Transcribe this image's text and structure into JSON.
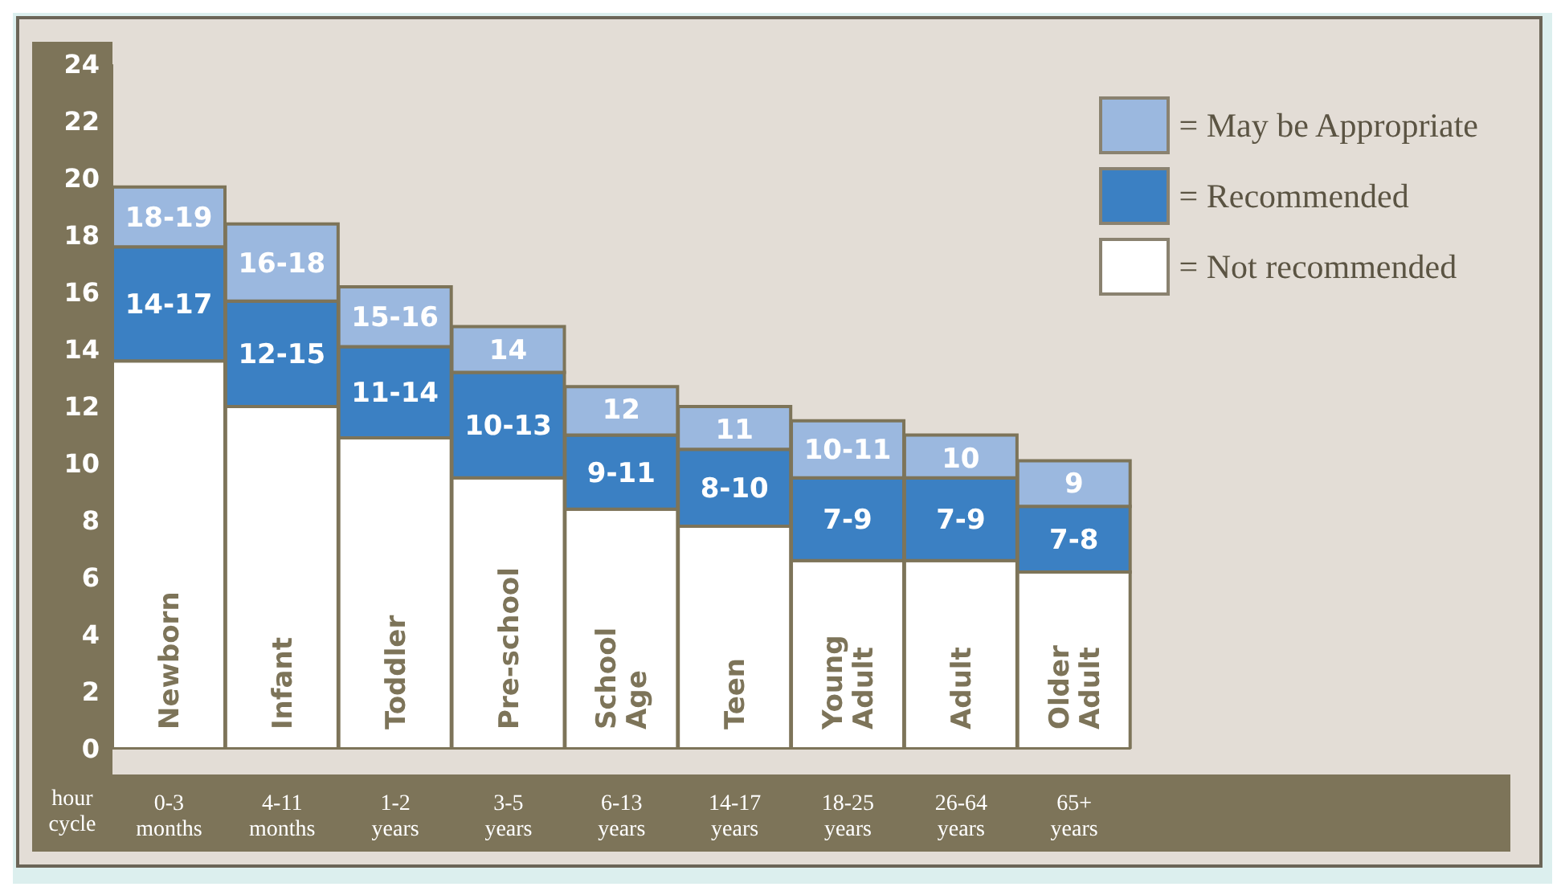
{
  "chart_data": {
    "type": "bar",
    "stacked": true,
    "ylabel": "hour cycle",
    "categories": [
      "0-3 months",
      "4-11 months",
      "1-2 years",
      "3-5 years",
      "6-13 years",
      "14-17 years",
      "18-25 years",
      "26-64 years",
      "65+ years"
    ],
    "series": [
      {
        "name": "= Not recommended",
        "color": "#ffffff",
        "values": [
          13.6,
          12.0,
          10.9,
          9.5,
          8.4,
          7.8,
          6.6,
          6.6,
          6.2
        ]
      },
      {
        "name": "= Recommended",
        "color": "#3b80c3",
        "values": [
          4.0,
          3.7,
          3.2,
          3.7,
          2.6,
          2.7,
          2.9,
          2.9,
          2.3
        ],
        "value_labels": [
          "14-17",
          "12-15",
          "11-14",
          "10-13",
          "9-11",
          "8-10",
          "7-9",
          "7-9",
          "7-8"
        ]
      },
      {
        "name": "= May be Appropriate",
        "color": "#9bb8df",
        "values": [
          2.1,
          2.7,
          2.1,
          1.6,
          1.7,
          1.5,
          2.0,
          1.5,
          1.6
        ],
        "value_labels": [
          "18-19",
          "16-18",
          "15-16",
          null,
          null,
          null,
          "10-11",
          null,
          null
        ]
      }
    ],
    "annotations": [
      "Newborn",
      "Infant",
      "Toddler",
      "Pre-school",
      "School Age",
      "Teen",
      "Young Adult",
      "Adult",
      "Older Adult",
      {
        "text": "14",
        "x": "3-5 years",
        "y": 14.8
      },
      {
        "text": "12",
        "x": "6-13 years",
        "y": 12.7
      },
      {
        "text": "11",
        "x": "14-17 years",
        "y": 12.0
      },
      {
        "text": "10",
        "x": "26-64 years",
        "y": 11.0
      },
      {
        "text": "9",
        "x": "65+ years",
        "y": 10.1
      }
    ],
    "ylim": [
      0,
      24
    ],
    "yticks": [
      0,
      2,
      4,
      6,
      8,
      10,
      12,
      14,
      16,
      18,
      20,
      22,
      24
    ],
    "legend": "top right",
    "grid": false
  }
}
